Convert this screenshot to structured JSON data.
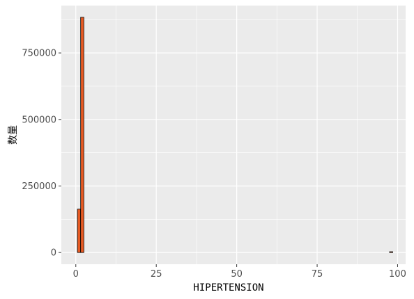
{
  "chart_data": {
    "type": "bar",
    "xlabel": "HIPERTENSION",
    "ylabel": "数量",
    "xlim": [
      -4.5,
      102.5
    ],
    "ylim": [
      -44000,
      928000
    ],
    "x_ticks": [
      0,
      25,
      50,
      75,
      100
    ],
    "x_tick_labels": [
      "0",
      "25",
      "50",
      "75",
      "100"
    ],
    "y_ticks": [
      0,
      250000,
      500000,
      750000
    ],
    "y_tick_labels": [
      "0",
      "250000",
      "500000",
      "750000"
    ],
    "bin_width": 1,
    "bars": [
      {
        "x": 1,
        "value": 163000
      },
      {
        "x": 2,
        "value": 884000
      },
      {
        "x": 98,
        "value": 3000
      }
    ],
    "grid": true,
    "legend": "none",
    "colors": {
      "bar_fill": "#E65A23",
      "bar_stroke": "#000000",
      "panel_bg": "#EBEBEB",
      "grid": "#FFFFFF"
    }
  }
}
